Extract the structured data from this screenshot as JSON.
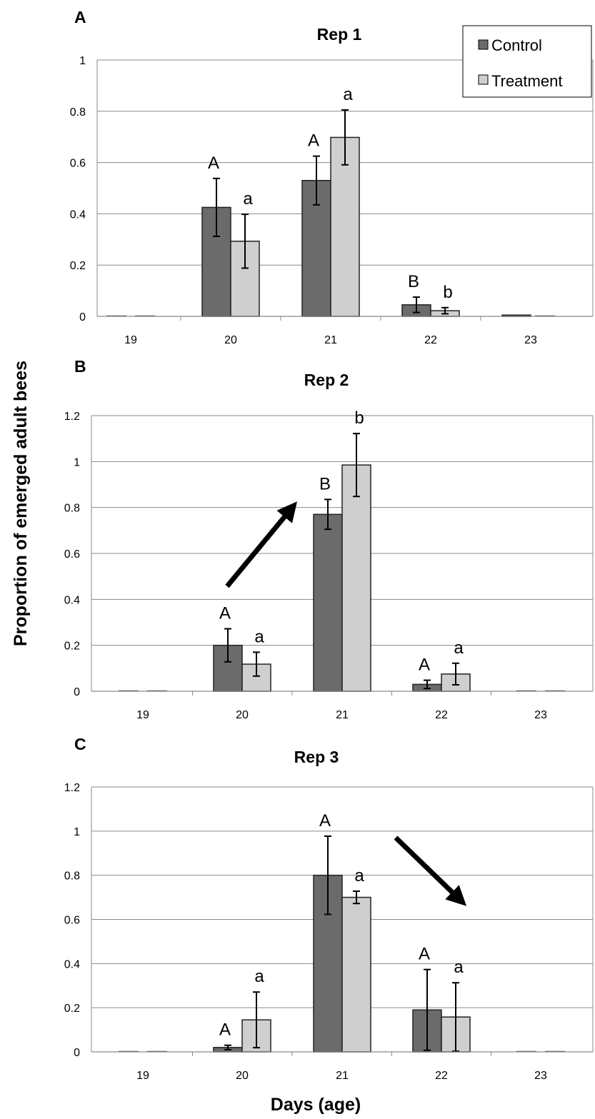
{
  "figure": {
    "ylabel": "Proportion of emerged adult bees",
    "xlabel": "Days (age)"
  },
  "colors": {
    "control": "#6b6b6b",
    "treatment": "#cfcfcf",
    "arrow": "#000000"
  },
  "legend": {
    "control": "Control",
    "treatment": "Treatment"
  },
  "chart_data": [
    {
      "type": "bar",
      "panel_label": "A",
      "title": "Rep 1",
      "categories": [
        "19",
        "20",
        "21",
        "22",
        "23"
      ],
      "ylim": [
        0,
        1
      ],
      "yticks": [
        "0",
        "0.2",
        "0.4",
        "0.6",
        "0.8",
        "1"
      ],
      "grid": true,
      "legend": "top-right",
      "series": [
        {
          "name": "Control",
          "values": [
            0,
            0.425,
            0.53,
            0.045,
            0.005
          ],
          "errors": [
            0,
            0.113,
            0.095,
            0.03,
            0
          ],
          "letters": [
            "",
            "A",
            "A",
            "B",
            ""
          ]
        },
        {
          "name": "Treatment",
          "values": [
            0,
            0.293,
            0.698,
            0.022,
            0
          ],
          "errors": [
            0,
            0.105,
            0.107,
            0.012,
            0
          ],
          "letters": [
            "",
            "a",
            "a",
            "b",
            ""
          ]
        }
      ]
    },
    {
      "type": "bar",
      "panel_label": "B",
      "title": "Rep 2",
      "categories": [
        "19",
        "20",
        "21",
        "22",
        "23"
      ],
      "ylim": [
        0,
        1.2
      ],
      "yticks": [
        "0",
        "0.2",
        "0.4",
        "0.6",
        "0.8",
        "1",
        "1.2"
      ],
      "grid": true,
      "annotation": "arrow pointing up toward day 21",
      "series": [
        {
          "name": "Control",
          "values": [
            0,
            0.2,
            0.77,
            0.03,
            0
          ],
          "errors": [
            0,
            0.072,
            0.065,
            0.018,
            0
          ],
          "letters": [
            "",
            "A",
            "B",
            "A",
            ""
          ]
        },
        {
          "name": "Treatment",
          "values": [
            0,
            0.118,
            0.985,
            0.075,
            0
          ],
          "errors": [
            0,
            0.052,
            0.137,
            0.047,
            0
          ],
          "letters": [
            "",
            "a",
            "b",
            "a",
            ""
          ]
        }
      ]
    },
    {
      "type": "bar",
      "panel_label": "C",
      "title": "Rep 3",
      "categories": [
        "19",
        "20",
        "21",
        "22",
        "23"
      ],
      "ylim": [
        0,
        1.2
      ],
      "yticks": [
        "0",
        "0.2",
        "0.4",
        "0.6",
        "0.8",
        "1",
        "1.2"
      ],
      "grid": true,
      "annotation": "arrow pointing down toward day 22",
      "series": [
        {
          "name": "Control",
          "values": [
            0,
            0.02,
            0.8,
            0.19,
            0
          ],
          "errors": [
            0,
            0.01,
            0.177,
            0.183,
            0
          ],
          "letters": [
            "",
            "A",
            "A",
            "A",
            ""
          ]
        },
        {
          "name": "Treatment",
          "values": [
            0,
            0.145,
            0.7,
            0.158,
            0
          ],
          "errors": [
            0,
            0.126,
            0.028,
            0.155,
            0
          ],
          "letters": [
            "",
            "a",
            "a",
            "a",
            ""
          ]
        }
      ]
    }
  ]
}
